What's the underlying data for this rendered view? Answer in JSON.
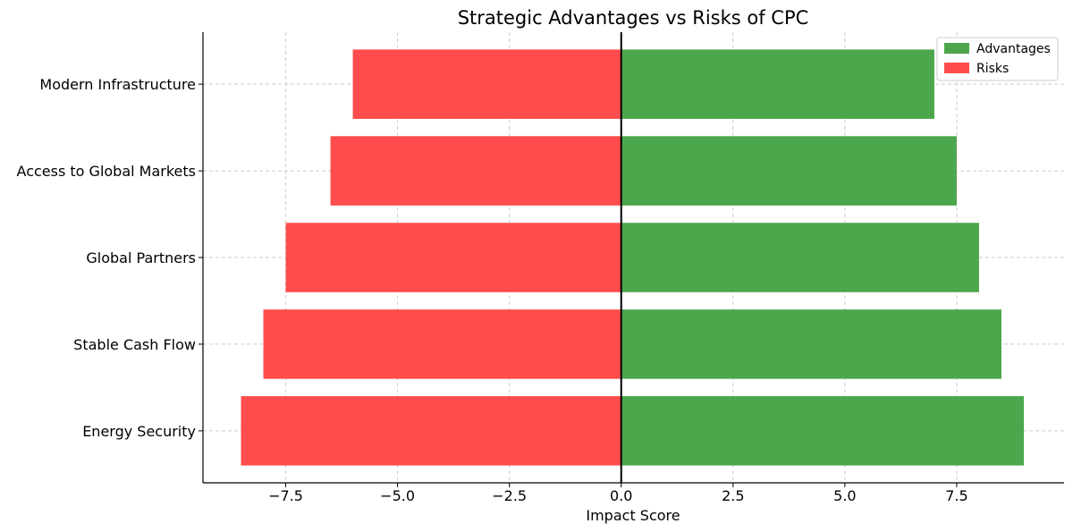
{
  "chart_data": {
    "type": "bar",
    "orientation": "horizontal",
    "title": "Strategic Advantages vs Risks of CPC",
    "xlabel": "Impact Score",
    "ylabel": "",
    "categories": [
      "Energy Security",
      "Stable Cash Flow",
      "Global Partners",
      "Access to Global Markets",
      "Modern Infrastructure"
    ],
    "series": [
      {
        "name": "Advantages",
        "values": [
          9,
          8.5,
          8,
          7.5,
          7
        ],
        "color": "#4ca64c"
      },
      {
        "name": "Risks",
        "values": [
          -8.5,
          -8,
          -7.5,
          -6.5,
          -6
        ],
        "color": "#ff4c4c"
      }
    ],
    "xlim": [
      -9.35,
      9.9
    ],
    "xticks": [
      -7.5,
      -5.0,
      -2.5,
      0.0,
      2.5,
      5.0,
      7.5
    ],
    "xtick_labels": [
      "−7.5",
      "−5.0",
      "−2.5",
      "0.0",
      "2.5",
      "5.0",
      "7.5"
    ],
    "grid": true,
    "legend_position": "top-right",
    "zero_line": true
  }
}
